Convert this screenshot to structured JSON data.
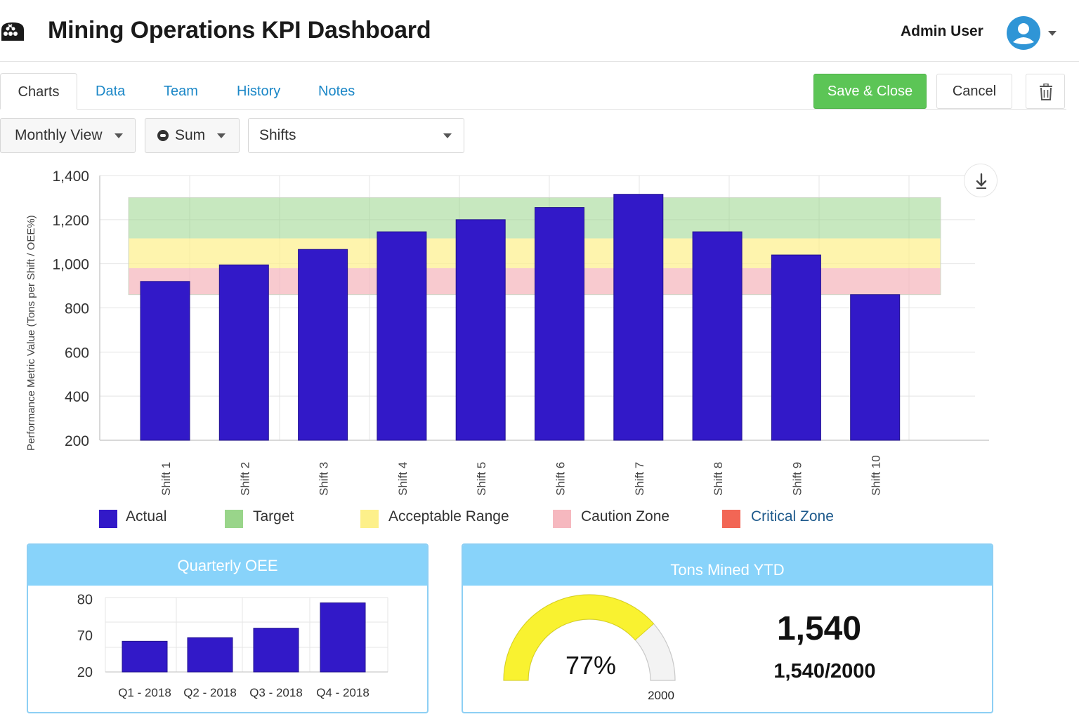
{
  "header": {
    "title": "Mining Operations KPI Dashboard",
    "user_name": "Admin User",
    "logo_icon": "mine-cart-icon",
    "avatar_icon": "user-avatar-icon"
  },
  "tabs": [
    {
      "label": "Charts",
      "active": true
    },
    {
      "label": "Data",
      "active": false
    },
    {
      "label": "Team",
      "active": false
    },
    {
      "label": "History",
      "active": false
    },
    {
      "label": "Notes",
      "active": false
    }
  ],
  "actions": {
    "save_label": "Save & Close",
    "cancel_label": "Cancel",
    "delete_icon": "trash-icon"
  },
  "filters": {
    "view": "Monthly View",
    "aggregate": "Sum",
    "group_by": "Shifts"
  },
  "colors": {
    "actual": "#3219c8",
    "target": "#99d58a",
    "acceptable": "#fdf08a",
    "caution": "#f6b8bf",
    "critical": "#f26655",
    "accent": "#1b87c7",
    "save": "#5cc556",
    "card_header": "#88d3fa",
    "gauge_fill": "#f9f230"
  },
  "chart_data": [
    {
      "type": "bar",
      "ylabel": "Performance Metric Value (Tons per Shift / OEE%)",
      "xlabel": "",
      "ylim": [
        200,
        1400
      ],
      "yticks": [
        200,
        400,
        600,
        800,
        1000,
        1200,
        1400
      ],
      "ytick_labels": [
        "200",
        "400",
        "600",
        "800",
        "1,000",
        "1,200",
        "1,400"
      ],
      "categories": [
        "Shift 1",
        "Shift 2",
        "Shift 3",
        "Shift 4",
        "Shift 5",
        "Shift 6",
        "Shift 7",
        "Shift 8",
        "Shift 9",
        "Shift 10"
      ],
      "series": [
        {
          "name": "Actual",
          "values": [
            920,
            995,
            1065,
            1145,
            1200,
            1255,
            1315,
            1145,
            1040,
            860
          ]
        }
      ],
      "bands": [
        {
          "name": "Target",
          "from": 1115,
          "to": 1300
        },
        {
          "name": "Acceptable Range",
          "from": 980,
          "to": 1115
        },
        {
          "name": "Caution Zone",
          "from": 860,
          "to": 980
        }
      ],
      "legend": [
        "Actual",
        "Target",
        "Acceptable Range",
        "Caution Zone",
        "Critical Zone"
      ],
      "legend_position": "bottom",
      "grid": true
    },
    {
      "type": "bar",
      "title": "Quarterly OEE",
      "categories": [
        "Q1 - 2018",
        "Q2 - 2018",
        "Q3 - 2018",
        "Q4 - 2018"
      ],
      "values": [
        62,
        67,
        72,
        79
      ],
      "ytick_labels": [
        "20",
        "70",
        "80"
      ],
      "grid": true
    },
    {
      "type": "gauge",
      "title": "Tons Mined YTD",
      "value": 1540,
      "max": 2000,
      "percent": 77,
      "percent_label": "77%",
      "max_label": "2000",
      "big_value": "1,540",
      "ratio_label": "1,540/2000"
    }
  ]
}
